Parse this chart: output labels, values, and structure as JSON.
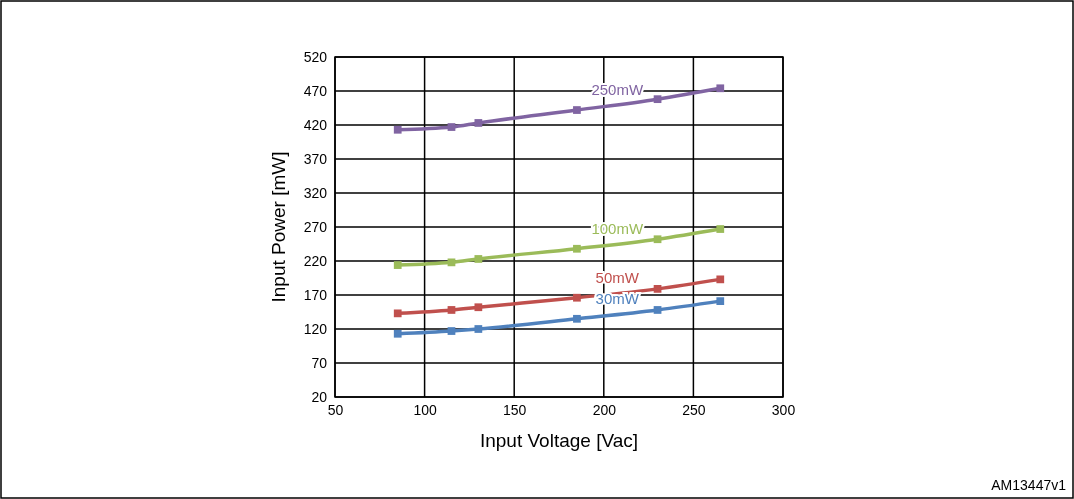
{
  "chart_data": {
    "type": "line",
    "xlabel": "Input Voltage [Vac]",
    "ylabel": "Input Power [mW]",
    "x": [
      85,
      115,
      130,
      185,
      230,
      265
    ],
    "series": [
      {
        "name": "250mW",
        "color": "#8064a2",
        "values": [
          413,
          417,
          423,
          442,
          458,
          474
        ]
      },
      {
        "name": "100mW",
        "color": "#9bbb59",
        "values": [
          214,
          218,
          223,
          238,
          252,
          267
        ]
      },
      {
        "name": "50mW",
        "color": "#c0504d",
        "values": [
          143,
          148,
          152,
          166,
          179,
          193
        ]
      },
      {
        "name": "30mW",
        "color": "#4f81bd",
        "values": [
          113,
          117,
          120,
          135,
          148,
          161
        ]
      }
    ],
    "xlim": [
      50,
      300
    ],
    "xticks": [
      50,
      100,
      150,
      200,
      250,
      300
    ],
    "ylim": [
      20,
      520
    ],
    "yticks": [
      20,
      70,
      120,
      170,
      220,
      270,
      320,
      370,
      420,
      470,
      520
    ],
    "grid": true,
    "marker": "square",
    "line_style": "solid",
    "annotations": [
      "AM13447v1"
    ]
  }
}
